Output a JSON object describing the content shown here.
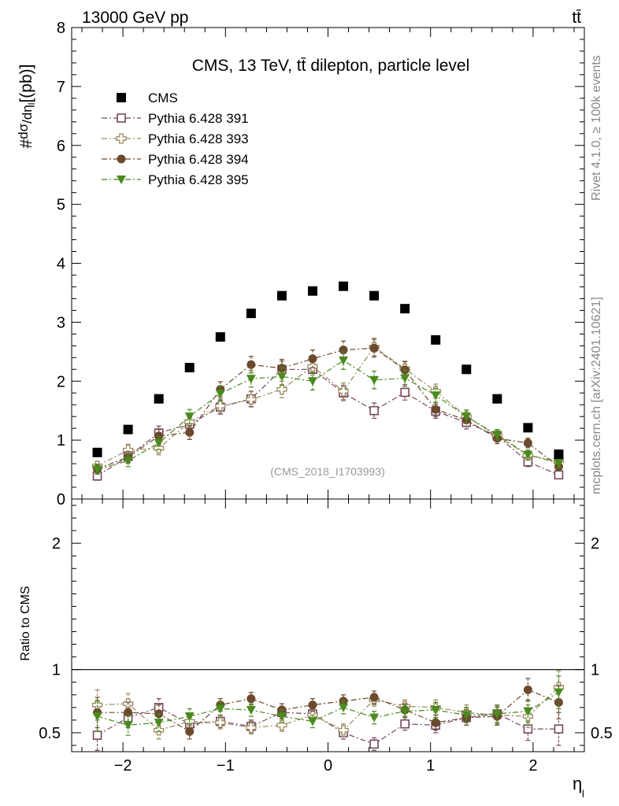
{
  "header": {
    "beam": "13000 GeV pp",
    "process": "tt̄"
  },
  "side_labels": {
    "rivet": "Rivet 4.1.0, ≥ 100k events",
    "mcplots": "mcplots.cern.ch [arXiv:2401.10621]"
  },
  "chart_data": {
    "type": "scatter",
    "title": "CMS, 13 TeV, tt̄ dilepton, particle level",
    "analysis_tag": "(CMS_2018_I1703993)",
    "ylabel_main": "dσ/dη_l [pb]",
    "ylabel_ratio": "Ratio to CMS",
    "xlabel": "η_l",
    "xlim": [
      -2.5,
      2.5
    ],
    "ylim_main": [
      0,
      8
    ],
    "ylim_ratio": [
      0.35,
      2.35
    ],
    "x_ticks": [
      "−2",
      "−1",
      "0",
      "1",
      "2"
    ],
    "y_ticks_main": [
      "0",
      "1",
      "2",
      "3",
      "4",
      "5",
      "6",
      "7",
      "8"
    ],
    "y_ticks_ratio": [
      "0.5",
      "1",
      "2"
    ],
    "x": [
      -2.25,
      -1.95,
      -1.65,
      -1.35,
      -1.05,
      -0.75,
      -0.45,
      -0.15,
      0.15,
      0.45,
      0.75,
      1.05,
      1.35,
      1.65,
      1.95,
      2.25
    ],
    "series": [
      {
        "name": "CMS",
        "color": "#000000",
        "marker": "filled-square",
        "line": "none",
        "values": [
          0.79,
          1.18,
          1.7,
          2.23,
          2.75,
          3.15,
          3.45,
          3.53,
          3.61,
          3.45,
          3.23,
          2.7,
          2.2,
          1.7,
          1.21,
          0.76
        ],
        "errors": [
          0.02,
          0.03,
          0.04,
          0.05,
          0.05,
          0.05,
          0.05,
          0.05,
          0.05,
          0.05,
          0.05,
          0.05,
          0.05,
          0.04,
          0.03,
          0.02
        ]
      },
      {
        "name": "Pythia 6.428 391",
        "color": "#74475e",
        "marker": "open-square",
        "line": "dashdot",
        "values": [
          0.39,
          0.72,
          1.12,
          1.27,
          1.56,
          1.7,
          2.2,
          2.2,
          1.8,
          1.5,
          1.81,
          1.49,
          1.3,
          1.07,
          0.63,
          0.41
        ],
        "errors": [
          0.07,
          0.1,
          0.12,
          0.12,
          0.12,
          0.13,
          0.14,
          0.15,
          0.13,
          0.13,
          0.13,
          0.12,
          0.11,
          0.09,
          0.08,
          0.06
        ]
      },
      {
        "name": "Pythia 6.428 393",
        "color": "#9a8a5e",
        "marker": "open-cross",
        "line": "dashdot",
        "values": [
          0.56,
          0.83,
          0.86,
          1.31,
          1.58,
          1.69,
          1.86,
          2.25,
          1.83,
          2.58,
          2.21,
          1.83,
          1.4,
          1.07,
          0.74,
          0.65
        ],
        "errors": [
          0.08,
          0.1,
          0.11,
          0.12,
          0.12,
          0.13,
          0.14,
          0.15,
          0.14,
          0.15,
          0.13,
          0.12,
          0.11,
          0.09,
          0.08,
          0.07
        ]
      },
      {
        "name": "Pythia 6.428 394",
        "color": "#6b4a2e",
        "marker": "filled-circle",
        "line": "dashdot",
        "values": [
          0.51,
          0.71,
          1.07,
          1.13,
          1.86,
          2.28,
          2.22,
          2.38,
          2.53,
          2.56,
          2.19,
          1.52,
          1.34,
          1.03,
          0.95,
          0.55
        ],
        "errors": [
          0.08,
          0.1,
          0.11,
          0.12,
          0.13,
          0.14,
          0.15,
          0.15,
          0.15,
          0.15,
          0.14,
          0.12,
          0.11,
          0.09,
          0.08,
          0.07
        ]
      },
      {
        "name": "Pythia 6.428 395",
        "color": "#4a8a1e",
        "marker": "filled-triangle-down",
        "line": "dashdot",
        "values": [
          0.5,
          0.65,
          0.95,
          1.4,
          1.79,
          2.04,
          2.08,
          2.0,
          2.35,
          2.02,
          2.05,
          1.76,
          1.4,
          1.09,
          0.75,
          0.61
        ],
        "errors": [
          0.08,
          0.1,
          0.11,
          0.12,
          0.13,
          0.14,
          0.15,
          0.15,
          0.15,
          0.15,
          0.14,
          0.12,
          0.11,
          0.09,
          0.08,
          0.07
        ]
      }
    ],
    "ratio_series": [
      {
        "name": "Pythia 6.428 391",
        "values": [
          0.48,
          0.62,
          0.7,
          0.57,
          0.59,
          0.55,
          0.66,
          0.65,
          0.5,
          0.41,
          0.57,
          0.56,
          0.62,
          0.65,
          0.53,
          0.53
        ],
        "errors": [
          0.12,
          0.08,
          0.07,
          0.06,
          0.05,
          0.05,
          0.05,
          0.05,
          0.05,
          0.05,
          0.05,
          0.06,
          0.06,
          0.07,
          0.09,
          0.13
        ]
      },
      {
        "name": "Pythia 6.428 393",
        "values": [
          0.72,
          0.73,
          0.52,
          0.59,
          0.58,
          0.54,
          0.56,
          0.64,
          0.52,
          0.76,
          0.71,
          0.7,
          0.66,
          0.64,
          0.63,
          0.86
        ],
        "errors": [
          0.12,
          0.08,
          0.07,
          0.06,
          0.05,
          0.05,
          0.05,
          0.05,
          0.05,
          0.05,
          0.05,
          0.06,
          0.06,
          0.07,
          0.09,
          0.13
        ]
      },
      {
        "name": "Pythia 6.428 394",
        "values": [
          0.66,
          0.66,
          0.65,
          0.51,
          0.72,
          0.77,
          0.68,
          0.72,
          0.75,
          0.78,
          0.68,
          0.58,
          0.62,
          0.63,
          0.84,
          0.74
        ],
        "errors": [
          0.12,
          0.08,
          0.07,
          0.06,
          0.05,
          0.05,
          0.05,
          0.05,
          0.05,
          0.05,
          0.05,
          0.06,
          0.06,
          0.07,
          0.09,
          0.13
        ]
      },
      {
        "name": "Pythia 6.428 395",
        "values": [
          0.63,
          0.56,
          0.58,
          0.63,
          0.69,
          0.68,
          0.63,
          0.59,
          0.7,
          0.62,
          0.67,
          0.68,
          0.64,
          0.65,
          0.67,
          0.82
        ],
        "errors": [
          0.12,
          0.08,
          0.07,
          0.06,
          0.05,
          0.05,
          0.05,
          0.05,
          0.05,
          0.05,
          0.05,
          0.06,
          0.06,
          0.07,
          0.09,
          0.13
        ]
      }
    ],
    "legend_position": "top-left"
  }
}
